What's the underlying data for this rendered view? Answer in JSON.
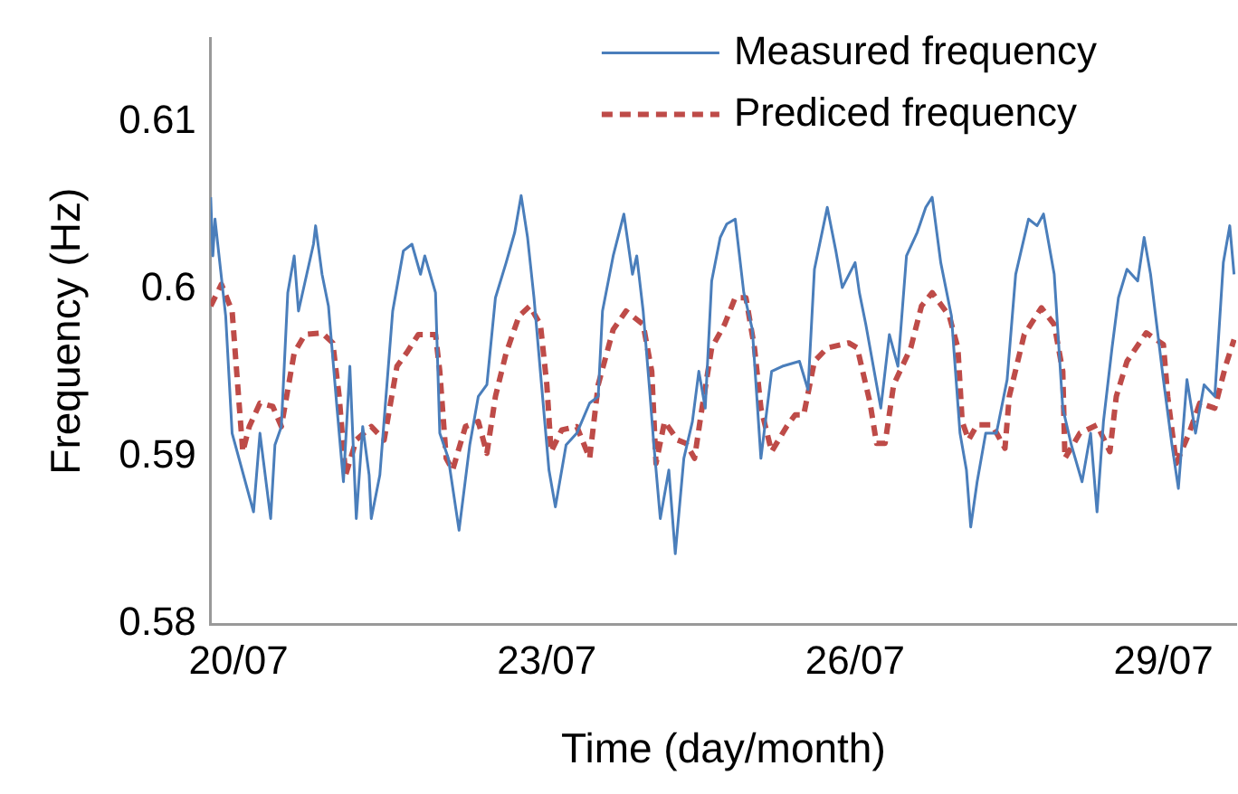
{
  "chart_data": {
    "type": "line",
    "xlabel": "Time (day/month)",
    "ylabel": "Frequency (Hz)",
    "xlim": [
      "--07-19T17:30",
      "--07-29T17:00"
    ],
    "ylim": [
      0.58,
      0.615
    ],
    "xticks": [
      {
        "value": "--07-20",
        "label": "20/07"
      },
      {
        "value": "--07-23",
        "label": "23/07"
      },
      {
        "value": "--07-26",
        "label": "26/07"
      },
      {
        "value": "--07-29",
        "label": "29/07"
      }
    ],
    "yticks": [
      0.58,
      0.59,
      0.6,
      0.61
    ],
    "legend": "top right",
    "marker": "none",
    "series": [
      {
        "name": "Measured frequency",
        "color": "#4a7ebb",
        "line_style": "solid",
        "x": [
          "--07-19T17:30",
          "--07-19T18:00",
          "--07-19T18:30",
          "--07-19T21:00",
          "--07-19T22:30",
          "--07-20T03:30",
          "--07-20T05:00",
          "--07-20T07:30",
          "--07-20T08:30",
          "--07-20T10:00",
          "--07-20T11:30",
          "--07-20T13:00",
          "--07-20T14:00",
          "--07-20T17:30",
          "--07-20T18:00",
          "--07-20T19:30",
          "--07-20T21:00",
          "--07-20T23:00",
          "--07-21T00:30",
          "--07-21T02:00",
          "--07-21T03:30",
          "--07-21T05:00",
          "--07-21T06:30",
          "--07-21T07:00",
          "--07-21T09:00",
          "--07-21T12:00",
          "--07-21T14:30",
          "--07-21T16:30",
          "--07-21T18:30",
          "--07-21T19:30",
          "--07-21T22:00",
          "--07-21T23:00",
          "--07-22T01:00",
          "--07-22T03:30",
          "--07-22T06:00",
          "--07-22T08:00",
          "--07-22T10:00",
          "--07-22T12:00",
          "--07-22T14:30",
          "--07-22T16:30",
          "--07-22T18:00",
          "--07-22T19:30",
          "--07-22T21:00",
          "--07-22T23:00",
          "--07-23T00:30",
          "--07-23T02:00",
          "--07-23T04:30",
          "--07-23T07:00",
          "--07-23T10:00",
          "--07-23T12:00",
          "--07-23T13:00",
          "--07-23T15:30",
          "--07-23T18:00",
          "--07-23T20:00",
          "--07-23T21:00",
          "--07-23T22:30",
          "--07-24T00:00",
          "--07-24T01:00",
          "--07-24T02:30",
          "--07-24T04:30",
          "--07-24T06:00",
          "--07-24T08:00",
          "--07-24T10:00",
          "--07-24T11:30",
          "--07-24T13:00",
          "--07-24T14:30",
          "--07-24T16:30",
          "--07-24T18:00",
          "--07-24T20:00",
          "--07-24T22:00",
          "--07-25T00:00",
          "--07-25T02:00",
          "--07-25T04:30",
          "--07-25T07:00",
          "--07-25T11:00",
          "--07-25T13:00",
          "--07-25T14:30",
          "--07-25T17:30",
          "--07-25T19:30",
          "--07-25T21:00",
          "--07-26T00:00",
          "--07-26T01:00",
          "--07-26T02:30",
          "--07-26T06:00",
          "--07-26T08:00",
          "--07-26T10:00",
          "--07-26T12:00",
          "--07-26T14:30",
          "--07-26T16:30",
          "--07-26T18:00",
          "--07-26T20:00",
          "--07-26T22:30",
          "--07-27T00:30",
          "--07-27T02:00",
          "--07-27T03:00",
          "--07-27T04:30",
          "--07-27T06:30",
          "--07-27T09:00",
          "--07-27T11:30",
          "--07-27T13:30",
          "--07-27T16:30",
          "--07-27T18:30",
          "--07-27T20:00",
          "--07-27T22:30",
          "--07-28T00:30",
          "--07-28T02:30",
          "--07-28T05:00",
          "--07-28T07:00",
          "--07-28T08:30",
          "--07-28T10:00",
          "--07-28T12:00",
          "--07-28T13:30",
          "--07-28T15:30",
          "--07-28T18:00",
          "--07-28T19:30",
          "--07-28T21:00",
          "--07-29T00:00",
          "--07-29T02:00",
          "--07-29T03:30",
          "--07-29T05:30",
          "--07-29T07:30",
          "--07-29T09:30",
          "--07-29T12:00",
          "--07-29T14:00",
          "--07-29T15:30",
          "--07-29T16:30"
        ],
        "values": [
          0.6055,
          0.602,
          0.6042,
          0.5984,
          0.5914,
          0.5867,
          0.5914,
          0.5863,
          0.5907,
          0.5918,
          0.5998,
          0.602,
          0.5987,
          0.6027,
          0.6038,
          0.6009,
          0.599,
          0.5929,
          0.5885,
          0.5954,
          0.5863,
          0.5918,
          0.5889,
          0.5863,
          0.5889,
          0.5987,
          0.6023,
          0.6027,
          0.6009,
          0.602,
          0.5998,
          0.5914,
          0.5899,
          0.5856,
          0.5907,
          0.5936,
          0.5943,
          0.5995,
          0.6016,
          0.6034,
          0.6056,
          0.6031,
          0.5995,
          0.5936,
          0.5892,
          0.587,
          0.5907,
          0.5914,
          0.5932,
          0.5936,
          0.5987,
          0.602,
          0.6045,
          0.6009,
          0.602,
          0.5987,
          0.594,
          0.5907,
          0.5863,
          0.5892,
          0.5842,
          0.5899,
          0.5921,
          0.5951,
          0.5929,
          0.6005,
          0.6031,
          0.6039,
          0.6042,
          0.5998,
          0.5976,
          0.5899,
          0.5951,
          0.5954,
          0.5957,
          0.594,
          0.6012,
          0.6049,
          0.6023,
          0.6001,
          0.6016,
          0.5998,
          0.5979,
          0.5929,
          0.5973,
          0.5954,
          0.602,
          0.6034,
          0.6049,
          0.6055,
          0.6016,
          0.5984,
          0.5914,
          0.5892,
          0.5858,
          0.5885,
          0.5914,
          0.5914,
          0.5946,
          0.6009,
          0.6042,
          0.6038,
          0.6045,
          0.6009,
          0.5929,
          0.5907,
          0.5885,
          0.5914,
          0.5867,
          0.5921,
          0.5965,
          0.5995,
          0.6012,
          0.6005,
          0.6031,
          0.6009,
          0.5946,
          0.5907,
          0.5881,
          0.5946,
          0.5914,
          0.5943,
          0.5936,
          0.6016,
          0.6038,
          0.6009
        ]
      },
      {
        "name": "Prediced frequency",
        "color": "#be4b48",
        "line_style": "dashed",
        "x": [
          "--07-19T17:30",
          "--07-19T20:00",
          "--07-19T22:30",
          "--07-20T00:00",
          "--07-20T01:00",
          "--07-20T02:30",
          "--07-20T05:00",
          "--07-20T08:00",
          "--07-20T10:00",
          "--07-20T13:00",
          "--07-20T15:30",
          "--07-20T19:30",
          "--07-20T22:00",
          "--07-20T23:30",
          "--07-21T01:00",
          "--07-21T03:30",
          "--07-21T07:00",
          "--07-21T10:00",
          "--07-21T13:00",
          "--07-21T15:30",
          "--07-21T18:00",
          "--07-21T22:00",
          "--07-21T23:00",
          "--07-22T00:30",
          "--07-22T02:00",
          "--07-22T05:00",
          "--07-22T08:00",
          "--07-22T10:00",
          "--07-22T12:00",
          "--07-22T14:30",
          "--07-22T17:30",
          "--07-22T20:00",
          "--07-22T22:30",
          "--07-23T00:00",
          "--07-23T01:00",
          "--07-23T03:30",
          "--07-23T07:00",
          "--07-23T10:00",
          "--07-23T12:00",
          "--07-23T15:30",
          "--07-23T18:30",
          "--07-23T22:30",
          "--07-24T00:30",
          "--07-24T01:30",
          "--07-24T03:30",
          "--07-24T06:30",
          "--07-24T08:30",
          "--07-24T10:30",
          "--07-24T12:00",
          "--07-24T14:30",
          "--07-24T17:30",
          "--07-24T20:00",
          "--07-24T22:30",
          "--07-25T00:30",
          "--07-25T02:00",
          "--07-25T04:30",
          "--07-25T08:00",
          "--07-25T10:00",
          "--07-25T12:00",
          "--07-25T14:30",
          "--07-25T17:30",
          "--07-25T22:30",
          "--07-26T00:30",
          "--07-26T03:30",
          "--07-26T05:00",
          "--07-26T07:00",
          "--07-26T09:00",
          "--07-26T13:00",
          "--07-26T15:30",
          "--07-26T18:00",
          "--07-26T22:00",
          "--07-27T00:00",
          "--07-27T01:00",
          "--07-27T02:30",
          "--07-27T04:30",
          "--07-27T08:00",
          "--07-27T11:00",
          "--07-27T12:00",
          "--07-27T15:30",
          "--07-27T19:30",
          "--07-27T22:30",
          "--07-28T00:30",
          "--07-28T01:00",
          "--07-28T04:30",
          "--07-28T08:30",
          "--07-28T11:30",
          "--07-28T13:00",
          "--07-28T15:30",
          "--07-28T20:00",
          "--07-29T00:00",
          "--07-29T01:00",
          "--07-29T03:00",
          "--07-29T06:00",
          "--07-29T08:30",
          "--07-29T12:00",
          "--07-29T14:30",
          "--07-29T16:30"
        ],
        "values": [
          0.599,
          0.6003,
          0.5987,
          0.5936,
          0.5903,
          0.5918,
          0.5932,
          0.593,
          0.5918,
          0.5962,
          0.5973,
          0.5974,
          0.5968,
          0.5936,
          0.5889,
          0.591,
          0.5918,
          0.591,
          0.5954,
          0.5963,
          0.5973,
          0.5973,
          0.5951,
          0.5899,
          0.5892,
          0.5918,
          0.5921,
          0.5902,
          0.5936,
          0.5962,
          0.5984,
          0.599,
          0.5979,
          0.5943,
          0.5903,
          0.5916,
          0.5918,
          0.5899,
          0.5943,
          0.5976,
          0.5987,
          0.5979,
          0.5951,
          0.5896,
          0.5921,
          0.591,
          0.5908,
          0.5899,
          0.5925,
          0.5965,
          0.5979,
          0.5995,
          0.5995,
          0.5965,
          0.5929,
          0.5903,
          0.5918,
          0.5925,
          0.5925,
          0.5957,
          0.5965,
          0.5968,
          0.5965,
          0.5932,
          0.5908,
          0.5908,
          0.5943,
          0.5965,
          0.599,
          0.5998,
          0.5984,
          0.5965,
          0.5921,
          0.591,
          0.5919,
          0.5919,
          0.5905,
          0.5936,
          0.5973,
          0.5989,
          0.5979,
          0.5951,
          0.5899,
          0.5914,
          0.5919,
          0.5903,
          0.5936,
          0.5957,
          0.5974,
          0.5967,
          0.5936,
          0.5896,
          0.5914,
          0.5932,
          0.5929,
          0.5954,
          0.597
        ]
      }
    ]
  }
}
